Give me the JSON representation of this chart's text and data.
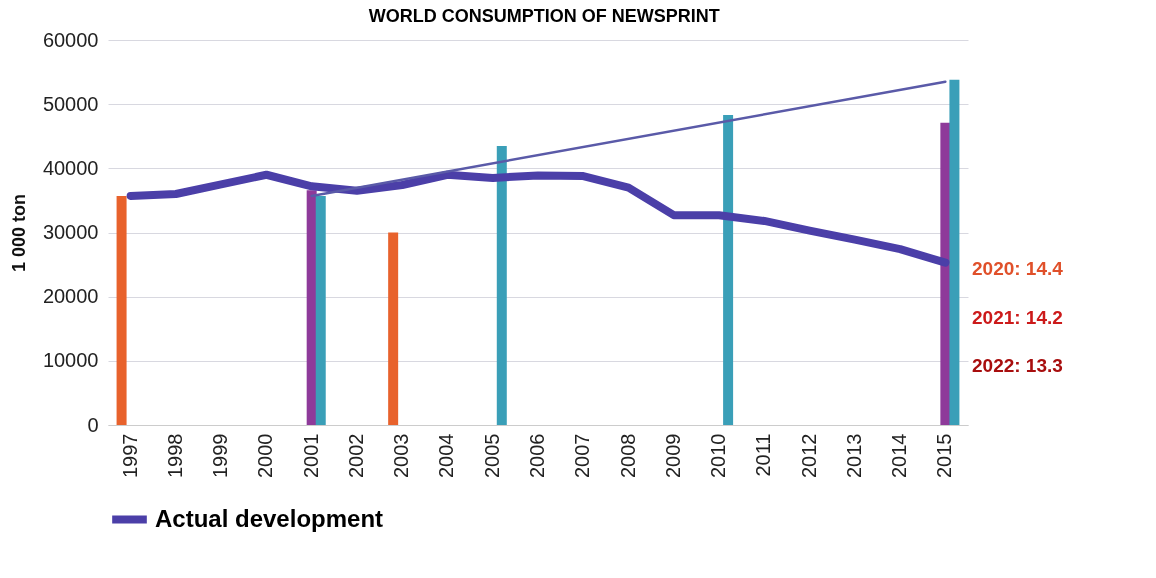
{
  "chart_data": {
    "type": "bar",
    "title": "WORLD CONSUMPTION OF NEWSPRINT",
    "ylabel": "1 000 ton",
    "categories": [
      "1997",
      "1998",
      "1999",
      "2000",
      "2001",
      "2002",
      "2003",
      "2004",
      "2005",
      "2006",
      "2007",
      "2008",
      "2009",
      "2010",
      "2011",
      "2012",
      "2013",
      "2014",
      "2015"
    ],
    "series": [
      {
        "color": "#e8622c",
        "values": [
          35700,
          null,
          null,
          null,
          null,
          null,
          30000,
          null,
          null,
          null,
          null,
          null,
          null,
          null,
          null,
          null,
          null,
          null,
          null
        ]
      },
      {
        "color": "#8e3a9a",
        "values": [
          null,
          null,
          null,
          null,
          36600,
          null,
          null,
          null,
          null,
          null,
          null,
          null,
          null,
          null,
          null,
          null,
          null,
          null,
          47100
        ]
      },
      {
        "color": "#3a9fb8",
        "values": [
          null,
          null,
          null,
          null,
          35700,
          null,
          null,
          null,
          43500,
          null,
          null,
          null,
          null,
          48300,
          null,
          null,
          null,
          null,
          53800
        ]
      },
      {
        "type": "line",
        "name": "Actual development",
        "color": "#4b3fa8",
        "values": [
          35700,
          36000,
          37500,
          39000,
          37200,
          36500,
          37400,
          39000,
          38500,
          38900,
          38800,
          37000,
          32700,
          32700,
          31800,
          30300,
          28900,
          27400,
          25300
        ]
      },
      {
        "type": "line",
        "color": "#5a5aa8",
        "values": [
          null,
          null,
          null,
          null,
          35700,
          null,
          null,
          null,
          null,
          null,
          null,
          null,
          null,
          null,
          null,
          null,
          null,
          null,
          53500
        ]
      }
    ],
    "ylim": [
      0,
      60000
    ],
    "yticks": [
      0,
      10000,
      20000,
      30000,
      40000,
      50000,
      60000
    ],
    "grid": "y",
    "legend": "bottom",
    "annotations": [
      "2020: 14.4",
      "2021: 14.2",
      "2022: 13.3"
    ]
  }
}
